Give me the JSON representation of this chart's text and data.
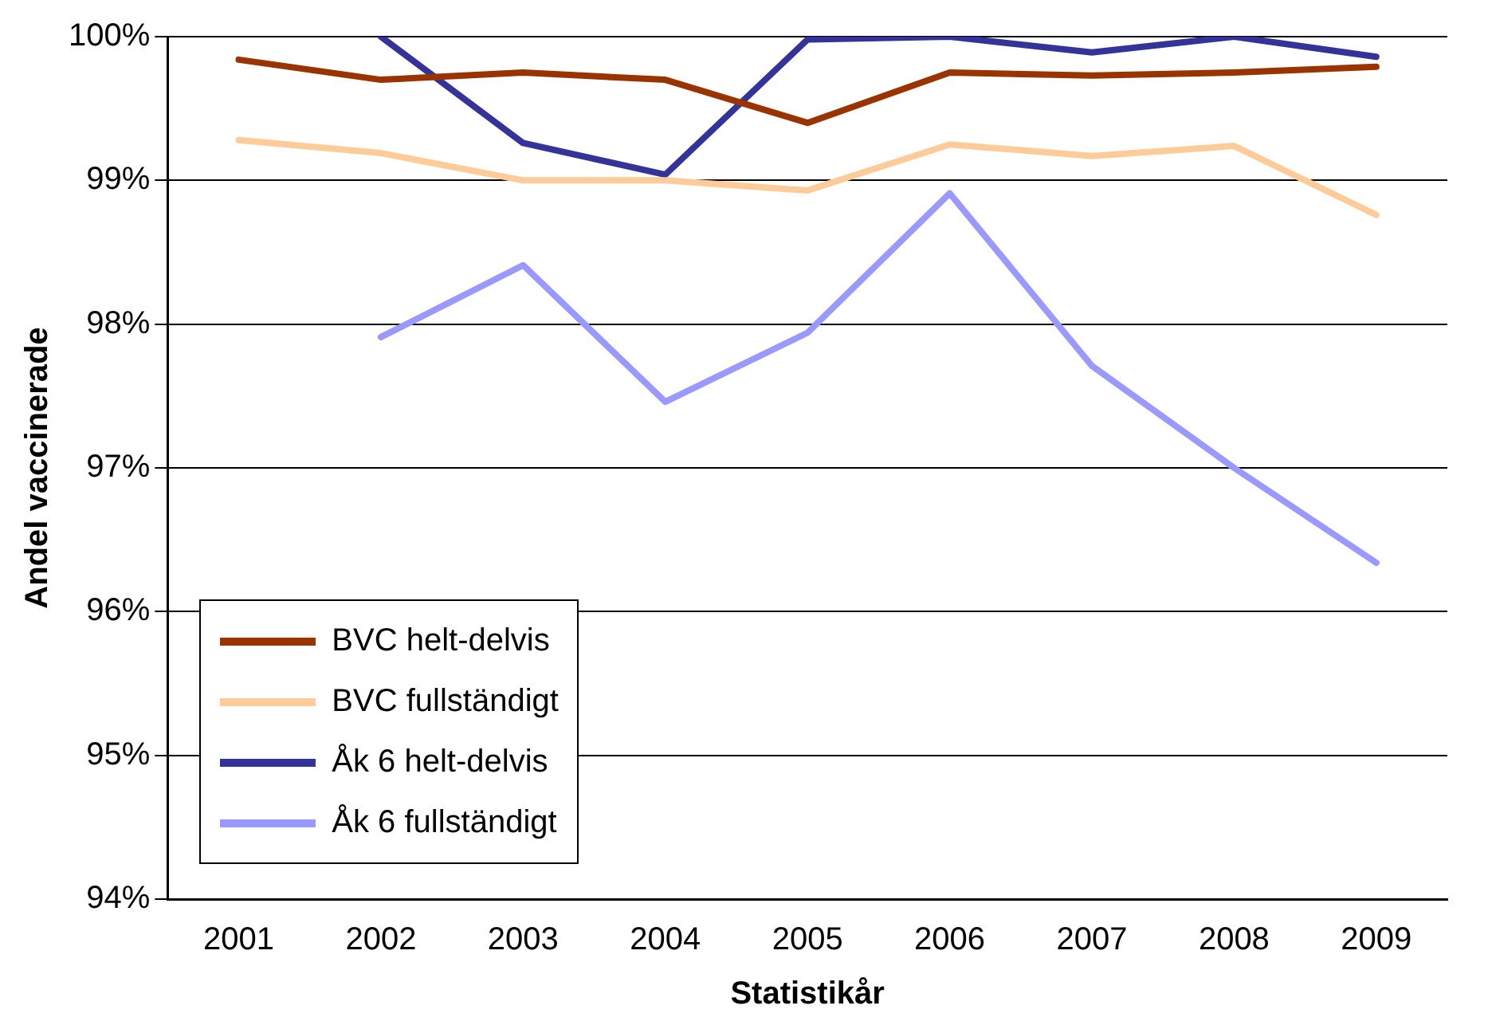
{
  "chart_data": {
    "type": "line",
    "xlabel": "Statistikår",
    "ylabel": "Andel vaccinerade",
    "categories": [
      "2001",
      "2002",
      "2003",
      "2004",
      "2005",
      "2006",
      "2007",
      "2008",
      "2009"
    ],
    "series": [
      {
        "name": "BVC helt-delvis",
        "color": "#993300",
        "values": [
          99.84,
          99.7,
          99.75,
          99.7,
          99.4,
          99.75,
          99.73,
          99.75,
          99.79
        ]
      },
      {
        "name": "BVC fullständigt",
        "color": "#ffcc99",
        "values": [
          99.28,
          99.19,
          99.0,
          99.0,
          98.93,
          99.25,
          99.17,
          99.24,
          98.76
        ]
      },
      {
        "name": "Åk 6 helt-delvis",
        "color": "#333399",
        "values": [
          null,
          100.0,
          99.26,
          99.04,
          99.98,
          100.0,
          99.89,
          100.0,
          99.86
        ]
      },
      {
        "name": "Åk 6 fullständigt",
        "color": "#9999ff",
        "values": [
          null,
          97.91,
          98.41,
          97.46,
          97.94,
          98.91,
          97.71,
          97.0,
          96.34
        ]
      }
    ],
    "ylim": [
      94,
      100
    ],
    "yticks": [
      {
        "value": 94,
        "label": "94%"
      },
      {
        "value": 95,
        "label": "95%"
      },
      {
        "value": 96,
        "label": "96%"
      },
      {
        "value": 97,
        "label": "97%"
      },
      {
        "value": 98,
        "label": "98%"
      },
      {
        "value": 99,
        "label": "99%"
      },
      {
        "value": 100,
        "label": "100%"
      }
    ],
    "grid": "y",
    "legend": "bottom left",
    "marker": "none",
    "line_style": "solid"
  }
}
